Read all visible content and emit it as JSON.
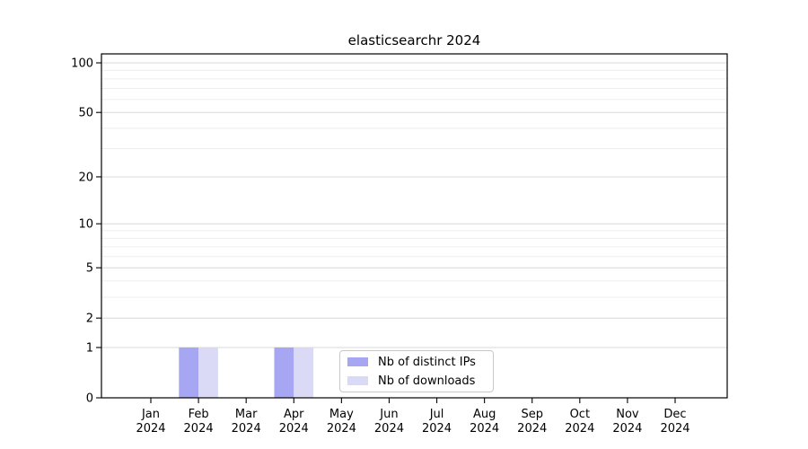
{
  "title": "elasticsearchr 2024",
  "chart_data": {
    "type": "bar",
    "title": "elasticsearchr 2024",
    "xlabel": "",
    "ylabel": "",
    "categories": [
      "Jan",
      "Feb",
      "Mar",
      "Apr",
      "May",
      "Jun",
      "Jul",
      "Aug",
      "Sep",
      "Oct",
      "Nov",
      "Dec"
    ],
    "year_label": "2024",
    "series": [
      {
        "name": "Nb of distinct IPs",
        "color": "#a6a6f2",
        "values": [
          0,
          1,
          0,
          1,
          0,
          0,
          0,
          0,
          0,
          0,
          0,
          0
        ]
      },
      {
        "name": "Nb of downloads",
        "color": "#dadaf7",
        "values": [
          0,
          1,
          0,
          1,
          0,
          0,
          0,
          0,
          0,
          0,
          0,
          0
        ]
      }
    ],
    "y_axis": {
      "scale": "log1p",
      "major_ticks": [
        0,
        1,
        2,
        5,
        10,
        20,
        50,
        100
      ],
      "minor_ticks": [
        3,
        4,
        6,
        7,
        8,
        9,
        30,
        40,
        60,
        70,
        80,
        90
      ],
      "ylim": [
        0,
        113
      ]
    },
    "grid": {
      "major_color": "#d8d8d8",
      "minor_color": "#ededed"
    },
    "legend": {
      "position": "inside-bottom-center",
      "entries": [
        "Nb of distinct IPs",
        "Nb of downloads"
      ]
    }
  }
}
